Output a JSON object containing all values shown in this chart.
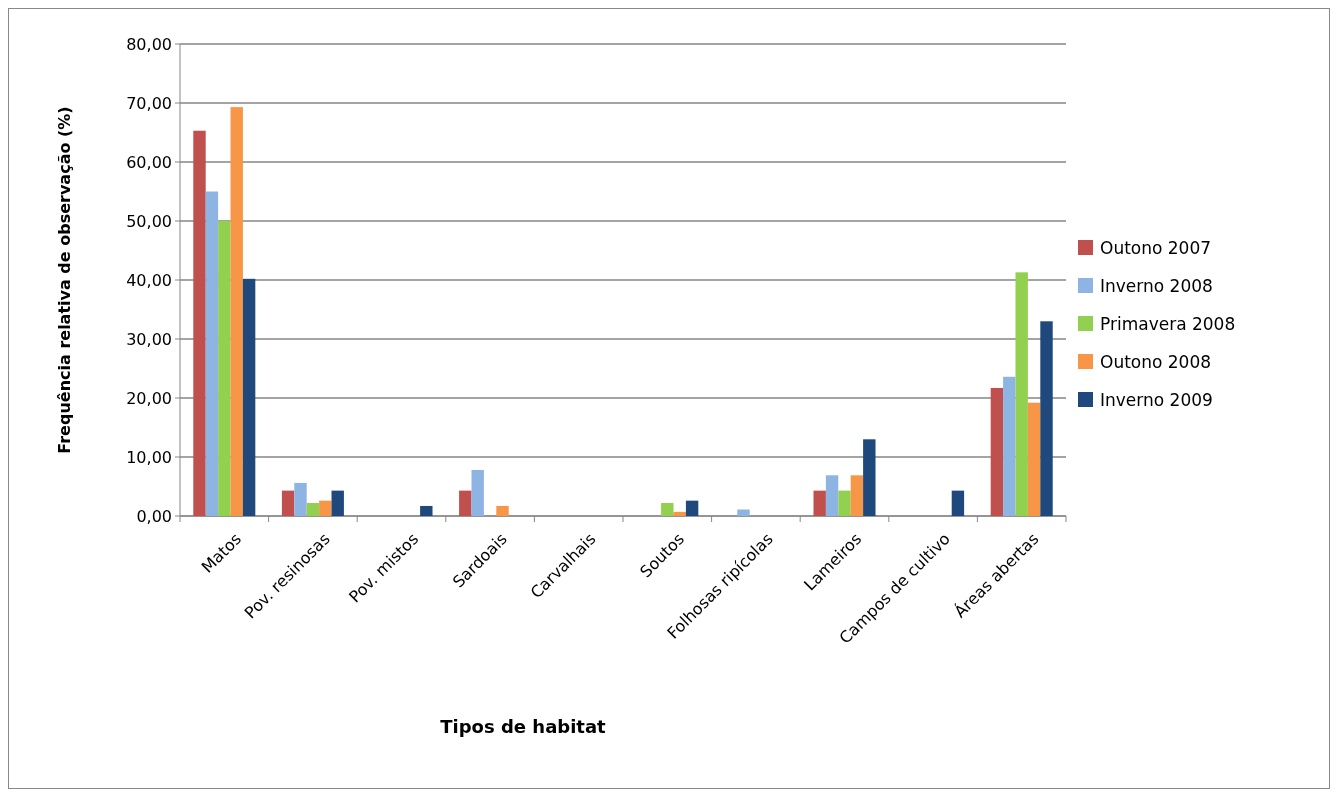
{
  "chart_data": {
    "type": "bar",
    "xlabel": "Tipos de habitat",
    "ylabel": "Frequência relativa de observação (%)",
    "categories": [
      "Matos",
      "Pov. resinosas",
      "Pov. mistos",
      "Sardoais",
      "Carvalhais",
      "Soutos",
      "Folhosas ripícolas",
      "Lameiros",
      "Campos de cultivo",
      "Áreas abertas"
    ],
    "series": [
      {
        "name": "Outono 2007",
        "color": "#c0504d",
        "values": [
          65.3,
          4.3,
          0,
          4.3,
          0,
          0,
          0,
          4.3,
          0,
          21.7
        ]
      },
      {
        "name": "Inverno 2008",
        "color": "#8eb4e3",
        "values": [
          55,
          5.6,
          0,
          7.8,
          0,
          0,
          1.1,
          6.9,
          0,
          23.6
        ]
      },
      {
        "name": "Primavera 2008",
        "color": "#92d050",
        "values": [
          50,
          2.2,
          0,
          0,
          0,
          2.2,
          0,
          4.3,
          0,
          41.3
        ]
      },
      {
        "name": "Outono 2008",
        "color": "#f79646",
        "values": [
          69.3,
          2.6,
          0,
          1.7,
          0,
          0.7,
          0,
          6.9,
          0,
          19.2
        ]
      },
      {
        "name": "Inverno 2009",
        "color": "#1f497d",
        "values": [
          40.2,
          4.3,
          1.7,
          0,
          0,
          2.6,
          0,
          13,
          4.3,
          33
        ]
      }
    ],
    "ylim": [
      0,
      80
    ],
    "yticks": [
      {
        "value": 0,
        "label": "0,00"
      },
      {
        "value": 10,
        "label": "10,00"
      },
      {
        "value": 20,
        "label": "20,00"
      },
      {
        "value": 30,
        "label": "30,00"
      },
      {
        "value": 40,
        "label": "40,00"
      },
      {
        "value": 50,
        "label": "50,00"
      },
      {
        "value": 60,
        "label": "60,00"
      },
      {
        "value": 70,
        "label": "70,00"
      },
      {
        "value": 80,
        "label": "80,00"
      }
    ],
    "grid": "y",
    "legend": "right"
  }
}
